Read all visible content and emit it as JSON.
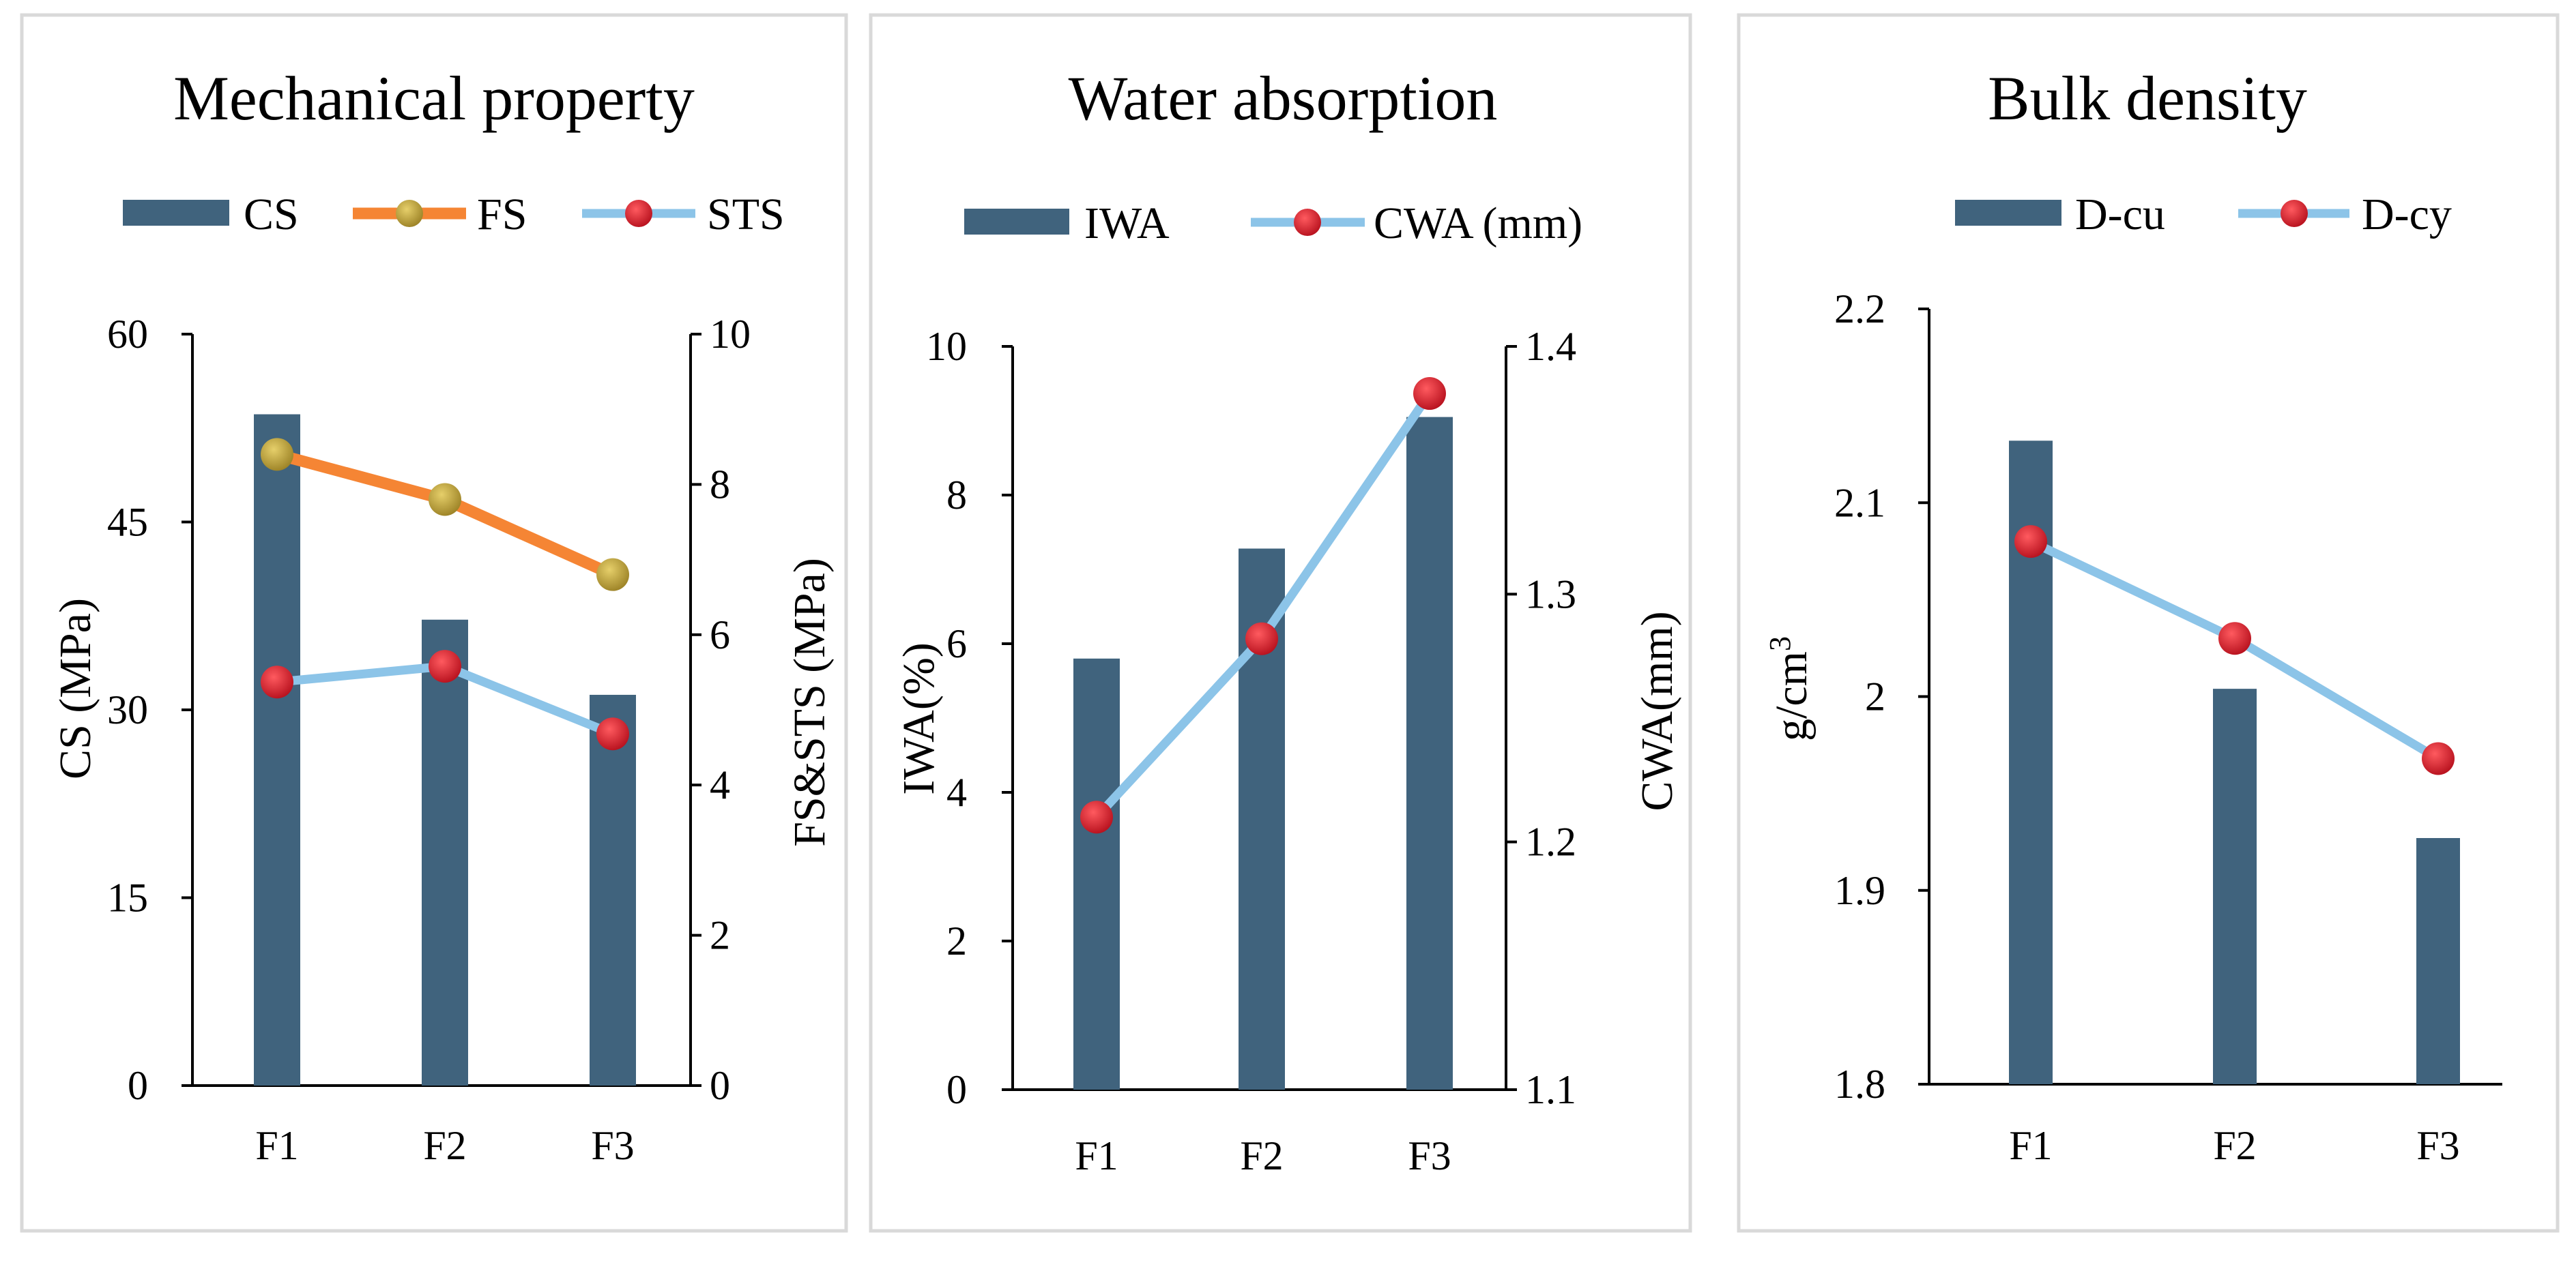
{
  "chart_data": [
    {
      "type": "bar+line",
      "title": "Mechanical property",
      "categories": [
        "F1",
        "F2",
        "F3"
      ],
      "ylabel": "CS (MPa)",
      "ylim": [
        0,
        60
      ],
      "yticks": [
        "0",
        "15",
        "30",
        "45",
        "60"
      ],
      "y2label": "FS&STS (MPa)",
      "y2lim": [
        0,
        10
      ],
      "y2ticks": [
        "0",
        "2",
        "4",
        "6",
        "8",
        "10"
      ],
      "series": [
        {
          "name": "CS",
          "kind": "bar",
          "axis": "left",
          "values": [
            53.6,
            37.2,
            31.2
          ]
        },
        {
          "name": "FS",
          "kind": "line",
          "axis": "right",
          "values": [
            8.4,
            7.8,
            6.8
          ]
        },
        {
          "name": "STS",
          "kind": "line",
          "axis": "right",
          "values": [
            5.37,
            5.58,
            4.68
          ]
        }
      ]
    },
    {
      "type": "bar+line",
      "title": "Water absorption",
      "categories": [
        "F1",
        "F2",
        "F3"
      ],
      "ylabel": "IWA(%)",
      "ylim": [
        0,
        10
      ],
      "yticks": [
        "0",
        "2",
        "4",
        "6",
        "8",
        "10"
      ],
      "y2label": "CWA(mm)",
      "y2lim": [
        1.1,
        1.4
      ],
      "y2ticks": [
        "1.1",
        "1.2",
        "1.3",
        "1.4"
      ],
      "series": [
        {
          "name": "IWA",
          "kind": "bar",
          "axis": "left",
          "values": [
            5.8,
            7.28,
            9.05
          ]
        },
        {
          "name": "CWA (mm)",
          "kind": "line",
          "axis": "right",
          "values": [
            1.21,
            1.282,
            1.381
          ]
        }
      ]
    },
    {
      "type": "bar+line",
      "title": "Bulk density",
      "categories": [
        "F1",
        "F2",
        "F3"
      ],
      "ylabel": "g/cm",
      "ylabel_sup": "3",
      "ylim": [
        1.8,
        2.2
      ],
      "yticks": [
        "1.8",
        "1.9",
        "2",
        "2.1",
        "2.2"
      ],
      "series": [
        {
          "name": "D-cu",
          "kind": "bar",
          "axis": "left",
          "values": [
            2.132,
            2.004,
            1.927
          ]
        },
        {
          "name": "D-cy",
          "kind": "line",
          "axis": "left",
          "values": [
            2.08,
            2.03,
            1.968
          ]
        }
      ]
    }
  ],
  "colors": {
    "bar": "#40637d",
    "fs_line": "#f58534",
    "fs_marker": "#b29937",
    "blue_line": "#8cc4e8",
    "red_marker": "#e0202d",
    "panel_border": "#d9d9d9"
  }
}
